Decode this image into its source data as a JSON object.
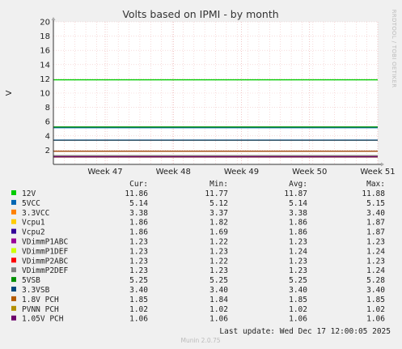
{
  "chart_data": {
    "type": "line",
    "title": "Volts based on IPMI - by month",
    "ylabel": "V",
    "ylim": [
      0,
      20
    ],
    "yticks": [
      2,
      4,
      6,
      8,
      10,
      12,
      14,
      16,
      18,
      20
    ],
    "ytick_labels": [
      "2",
      "4",
      "6",
      "8",
      "10",
      "12",
      "14",
      "16",
      "18",
      "20"
    ],
    "xticks": [
      "Week 47",
      "Week 48",
      "Week 49",
      "Week 50",
      "Week 51"
    ],
    "grid": true,
    "legend_headers": {
      "cur": "Cur:",
      "min": "Min:",
      "avg": "Avg:",
      "max": "Max:"
    },
    "series": [
      {
        "name": "12V",
        "color": "#00cc00",
        "value": 11.87,
        "cur": "11.86",
        "min": "11.77",
        "avg": "11.87",
        "max": "11.88"
      },
      {
        "name": "5VCC",
        "color": "#0066b3",
        "value": 5.14,
        "cur": "5.14",
        "min": "5.12",
        "avg": "5.14",
        "max": "5.15"
      },
      {
        "name": "3.3VCC",
        "color": "#ff8000",
        "value": 3.38,
        "cur": "3.38",
        "min": "3.37",
        "avg": "3.38",
        "max": "3.40"
      },
      {
        "name": "Vcpu1",
        "color": "#ffcc00",
        "value": 1.86,
        "cur": "1.86",
        "min": "1.82",
        "avg": "1.86",
        "max": "1.87"
      },
      {
        "name": "Vcpu2",
        "color": "#330099",
        "value": 1.86,
        "cur": "1.86",
        "min": "1.69",
        "avg": "1.86",
        "max": "1.87"
      },
      {
        "name": "VDimmP1ABC",
        "color": "#990099",
        "value": 1.23,
        "cur": "1.23",
        "min": "1.22",
        "avg": "1.23",
        "max": "1.23"
      },
      {
        "name": "VDimmP1DEF",
        "color": "#ccff00",
        "value": 1.24,
        "cur": "1.23",
        "min": "1.23",
        "avg": "1.24",
        "max": "1.24"
      },
      {
        "name": "VDimmP2ABC",
        "color": "#ff0000",
        "value": 1.23,
        "cur": "1.23",
        "min": "1.22",
        "avg": "1.23",
        "max": "1.23"
      },
      {
        "name": "VDimmP2DEF",
        "color": "#808080",
        "value": 1.23,
        "cur": "1.23",
        "min": "1.23",
        "avg": "1.23",
        "max": "1.24"
      },
      {
        "name": "5VSB",
        "color": "#008f00",
        "value": 5.25,
        "cur": "5.25",
        "min": "5.25",
        "avg": "5.25",
        "max": "5.28"
      },
      {
        "name": "3.3VSB",
        "color": "#00487d",
        "value": 3.4,
        "cur": "3.40",
        "min": "3.40",
        "avg": "3.40",
        "max": "3.40"
      },
      {
        "name": "1.8V PCH",
        "color": "#b35a00",
        "value": 1.85,
        "cur": "1.85",
        "min": "1.84",
        "avg": "1.85",
        "max": "1.85"
      },
      {
        "name": "PVNN PCH",
        "color": "#b38f00",
        "value": 1.02,
        "cur": "1.02",
        "min": "1.02",
        "avg": "1.02",
        "max": "1.02"
      },
      {
        "name": "1.05V PCH",
        "color": "#6b006b",
        "value": 1.06,
        "cur": "1.06",
        "min": "1.06",
        "avg": "1.06",
        "max": "1.06"
      }
    ]
  },
  "footer": {
    "last_update": "Last update: Wed Dec 17 12:00:05 2025",
    "munin": "Munin 2.0.75",
    "side_text": "RRDTOOL / TOBI OETIKER"
  }
}
